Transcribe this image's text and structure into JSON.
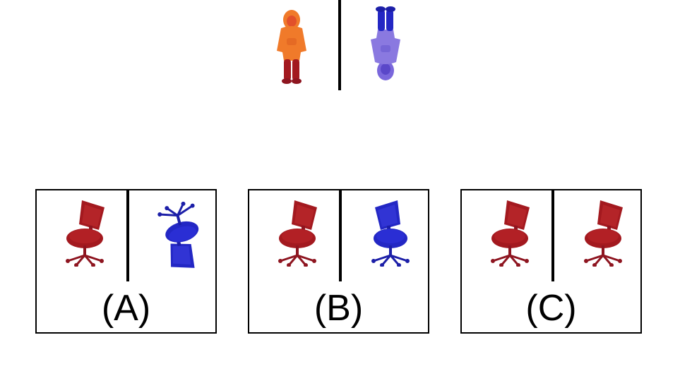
{
  "question": {
    "reference_left": {
      "icon": "person-orange-upright-icon",
      "color": "#f07a2a"
    },
    "reference_right": {
      "icon": "person-blue-upside-down-icon",
      "color": "#6b55d6"
    }
  },
  "options": [
    {
      "label": "(A)",
      "left_icon": "chair-red-icon",
      "right_icon": "chair-blue-flipped-icon"
    },
    {
      "label": "(B)",
      "left_icon": "chair-red-icon",
      "right_icon": "chair-blue-upright-icon"
    },
    {
      "label": "(C)",
      "left_icon": "chair-red-icon",
      "right_icon": "chair-red-icon"
    }
  ],
  "colors": {
    "red": "#a3191f",
    "blue": "#2327c4",
    "orange": "#f07a2a",
    "purple": "#6b55d6"
  }
}
